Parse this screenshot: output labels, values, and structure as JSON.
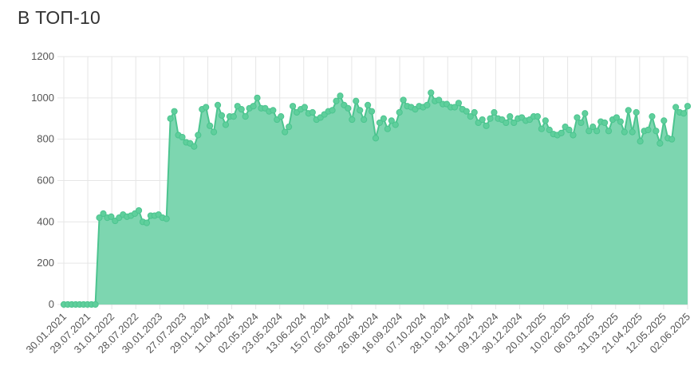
{
  "title": "В ТОП-10",
  "chart_data": {
    "type": "area",
    "title": "В ТОП-10",
    "xlabel": "",
    "ylabel": "",
    "ylim": [
      0,
      1200
    ],
    "yticks": [
      0,
      200,
      400,
      600,
      800,
      1000,
      1200
    ],
    "grid": true,
    "legend": "none",
    "colors": {
      "fill": "#7dd6b0",
      "line": "#4cc48f",
      "point": "#5fcf9c"
    },
    "xtick_labels": [
      "30.01.2021",
      "29.07.2021",
      "31.01.2022",
      "28.07.2022",
      "30.01.2023",
      "27.07.2023",
      "29.01.2024",
      "11.04.2024",
      "02.05.2024",
      "23.05.2024",
      "13.06.2024",
      "15.07.2024",
      "05.08.2024",
      "26.08.2024",
      "16.09.2024",
      "07.10.2024",
      "28.10.2024",
      "18.11.2024",
      "09.12.2024",
      "30.12.2024",
      "20.01.2025",
      "10.02.2025",
      "06.03.2025",
      "31.03.2025",
      "21.04.2025",
      "12.05.2025",
      "02.06.2025"
    ],
    "values": [
      0,
      0,
      0,
      0,
      0,
      0,
      0,
      0,
      0,
      420,
      440,
      420,
      425,
      405,
      420,
      435,
      425,
      430,
      440,
      455,
      400,
      395,
      430,
      430,
      435,
      420,
      415,
      900,
      935,
      820,
      810,
      785,
      780,
      765,
      820,
      945,
      955,
      865,
      835,
      965,
      915,
      870,
      910,
      910,
      960,
      945,
      910,
      950,
      960,
      1000,
      950,
      950,
      935,
      940,
      895,
      910,
      835,
      860,
      960,
      930,
      945,
      955,
      925,
      930,
      895,
      905,
      920,
      935,
      940,
      985,
      1010,
      965,
      950,
      895,
      985,
      940,
      895,
      965,
      935,
      805,
      880,
      900,
      850,
      890,
      870,
      930,
      990,
      960,
      955,
      945,
      960,
      955,
      965,
      1025,
      985,
      990,
      970,
      970,
      955,
      955,
      975,
      945,
      935,
      910,
      930,
      880,
      895,
      865,
      900,
      930,
      900,
      895,
      880,
      910,
      880,
      900,
      905,
      890,
      895,
      910,
      910,
      850,
      890,
      845,
      825,
      820,
      830,
      860,
      845,
      820,
      905,
      880,
      925,
      840,
      860,
      840,
      885,
      880,
      840,
      895,
      905,
      885,
      835,
      940,
      835,
      930,
      790,
      840,
      845,
      910,
      840,
      780,
      890,
      805,
      800,
      955,
      930,
      925,
      960
    ]
  }
}
